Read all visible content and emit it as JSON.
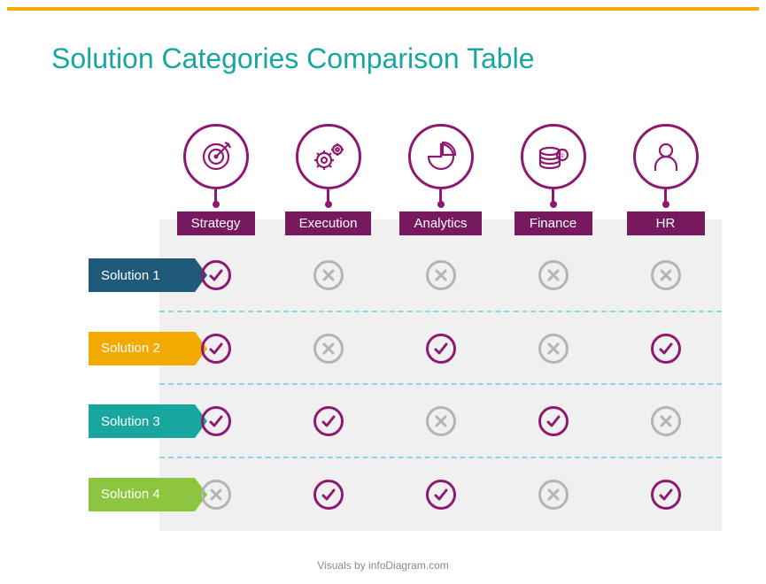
{
  "title": "Solution Categories Comparison Table",
  "title_color": "#1aa6a0",
  "accent_bar_color": "#f2a900",
  "table_bg": "#f0f0f0",
  "divider_color": "#8dd4e8",
  "header_icon_color": "#8e1971",
  "header_label_bg": "#76195e",
  "check_color": "#8e1971",
  "cross_color": "#b4b4b4",
  "footer": "Visuals by infoDiagram.com",
  "columns": [
    {
      "label": "Strategy",
      "icon": "target"
    },
    {
      "label": "Execution",
      "icon": "gears"
    },
    {
      "label": "Analytics",
      "icon": "pie"
    },
    {
      "label": "Finance",
      "icon": "coins"
    },
    {
      "label": "HR",
      "icon": "person"
    }
  ],
  "rows": [
    {
      "label": "Solution 1",
      "color": "#1f5a7a",
      "cells": [
        "check",
        "cross",
        "cross",
        "cross",
        "cross"
      ]
    },
    {
      "label": "Solution 2",
      "color": "#f2a900",
      "cells": [
        "check",
        "cross",
        "check",
        "cross",
        "check"
      ]
    },
    {
      "label": "Solution 3",
      "color": "#1aa6a0",
      "cells": [
        "check",
        "check",
        "cross",
        "check",
        "cross"
      ]
    },
    {
      "label": "Solution 4",
      "color": "#8cc63f",
      "cells": [
        "cross",
        "check",
        "check",
        "cross",
        "check"
      ]
    }
  ]
}
